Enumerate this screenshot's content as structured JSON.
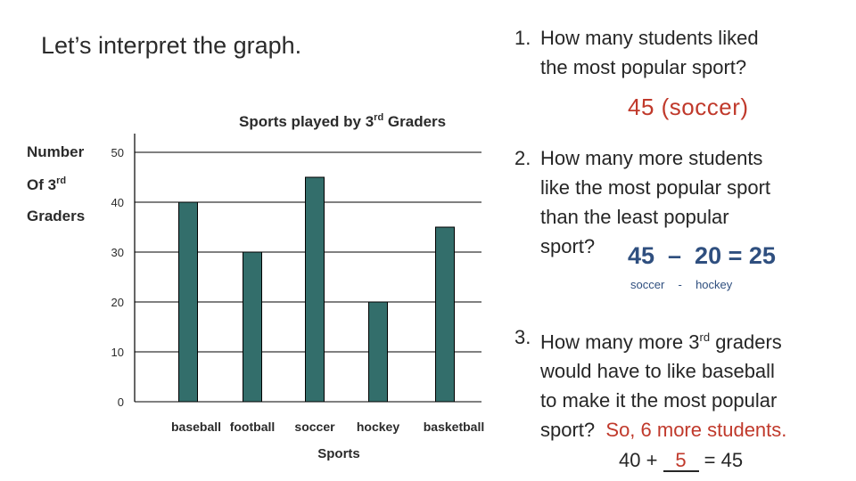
{
  "slide": {
    "heading": "Let’s interpret the graph."
  },
  "chart_data": {
    "type": "bar",
    "title_main": "Sports played by 3",
    "title_sup": "rd",
    "title_tail": " Graders",
    "ylabel_lines": [
      "Number",
      "Of 3",
      "Graders"
    ],
    "ylabel_sup": "rd",
    "xlabel": "Sports",
    "categories": [
      "baseball",
      "football",
      "soccer",
      "hockey",
      "basketball"
    ],
    "values": [
      40,
      30,
      45,
      20,
      35
    ],
    "yticks": [
      0,
      10,
      20,
      30,
      40,
      50
    ],
    "ylim": [
      0,
      50
    ],
    "grid": true,
    "bar_color": "#336e6b"
  },
  "questions": {
    "q1": {
      "number": "1.",
      "lines": [
        "How many students liked",
        "the most popular sport?"
      ],
      "answer": "45 (soccer)"
    },
    "q2": {
      "number": "2.",
      "lines": [
        "How many more students",
        "like the most popular sport",
        "than the least popular"
      ],
      "last_line": "sport?",
      "answer": "45  –  20 = 25",
      "note": "soccer  -  hockey"
    },
    "q3": {
      "number": "3.",
      "line1_pre": "How many more 3",
      "line1_sup": "rd",
      "line1_post": " graders",
      "lines": [
        "would have to like baseball",
        "to make it the most popular"
      ],
      "last_line": "sport?",
      "answer": "So, 6 more students.",
      "eq_pre": "40 + ",
      "eq_blank": "5",
      "eq_post": " = 45"
    }
  }
}
